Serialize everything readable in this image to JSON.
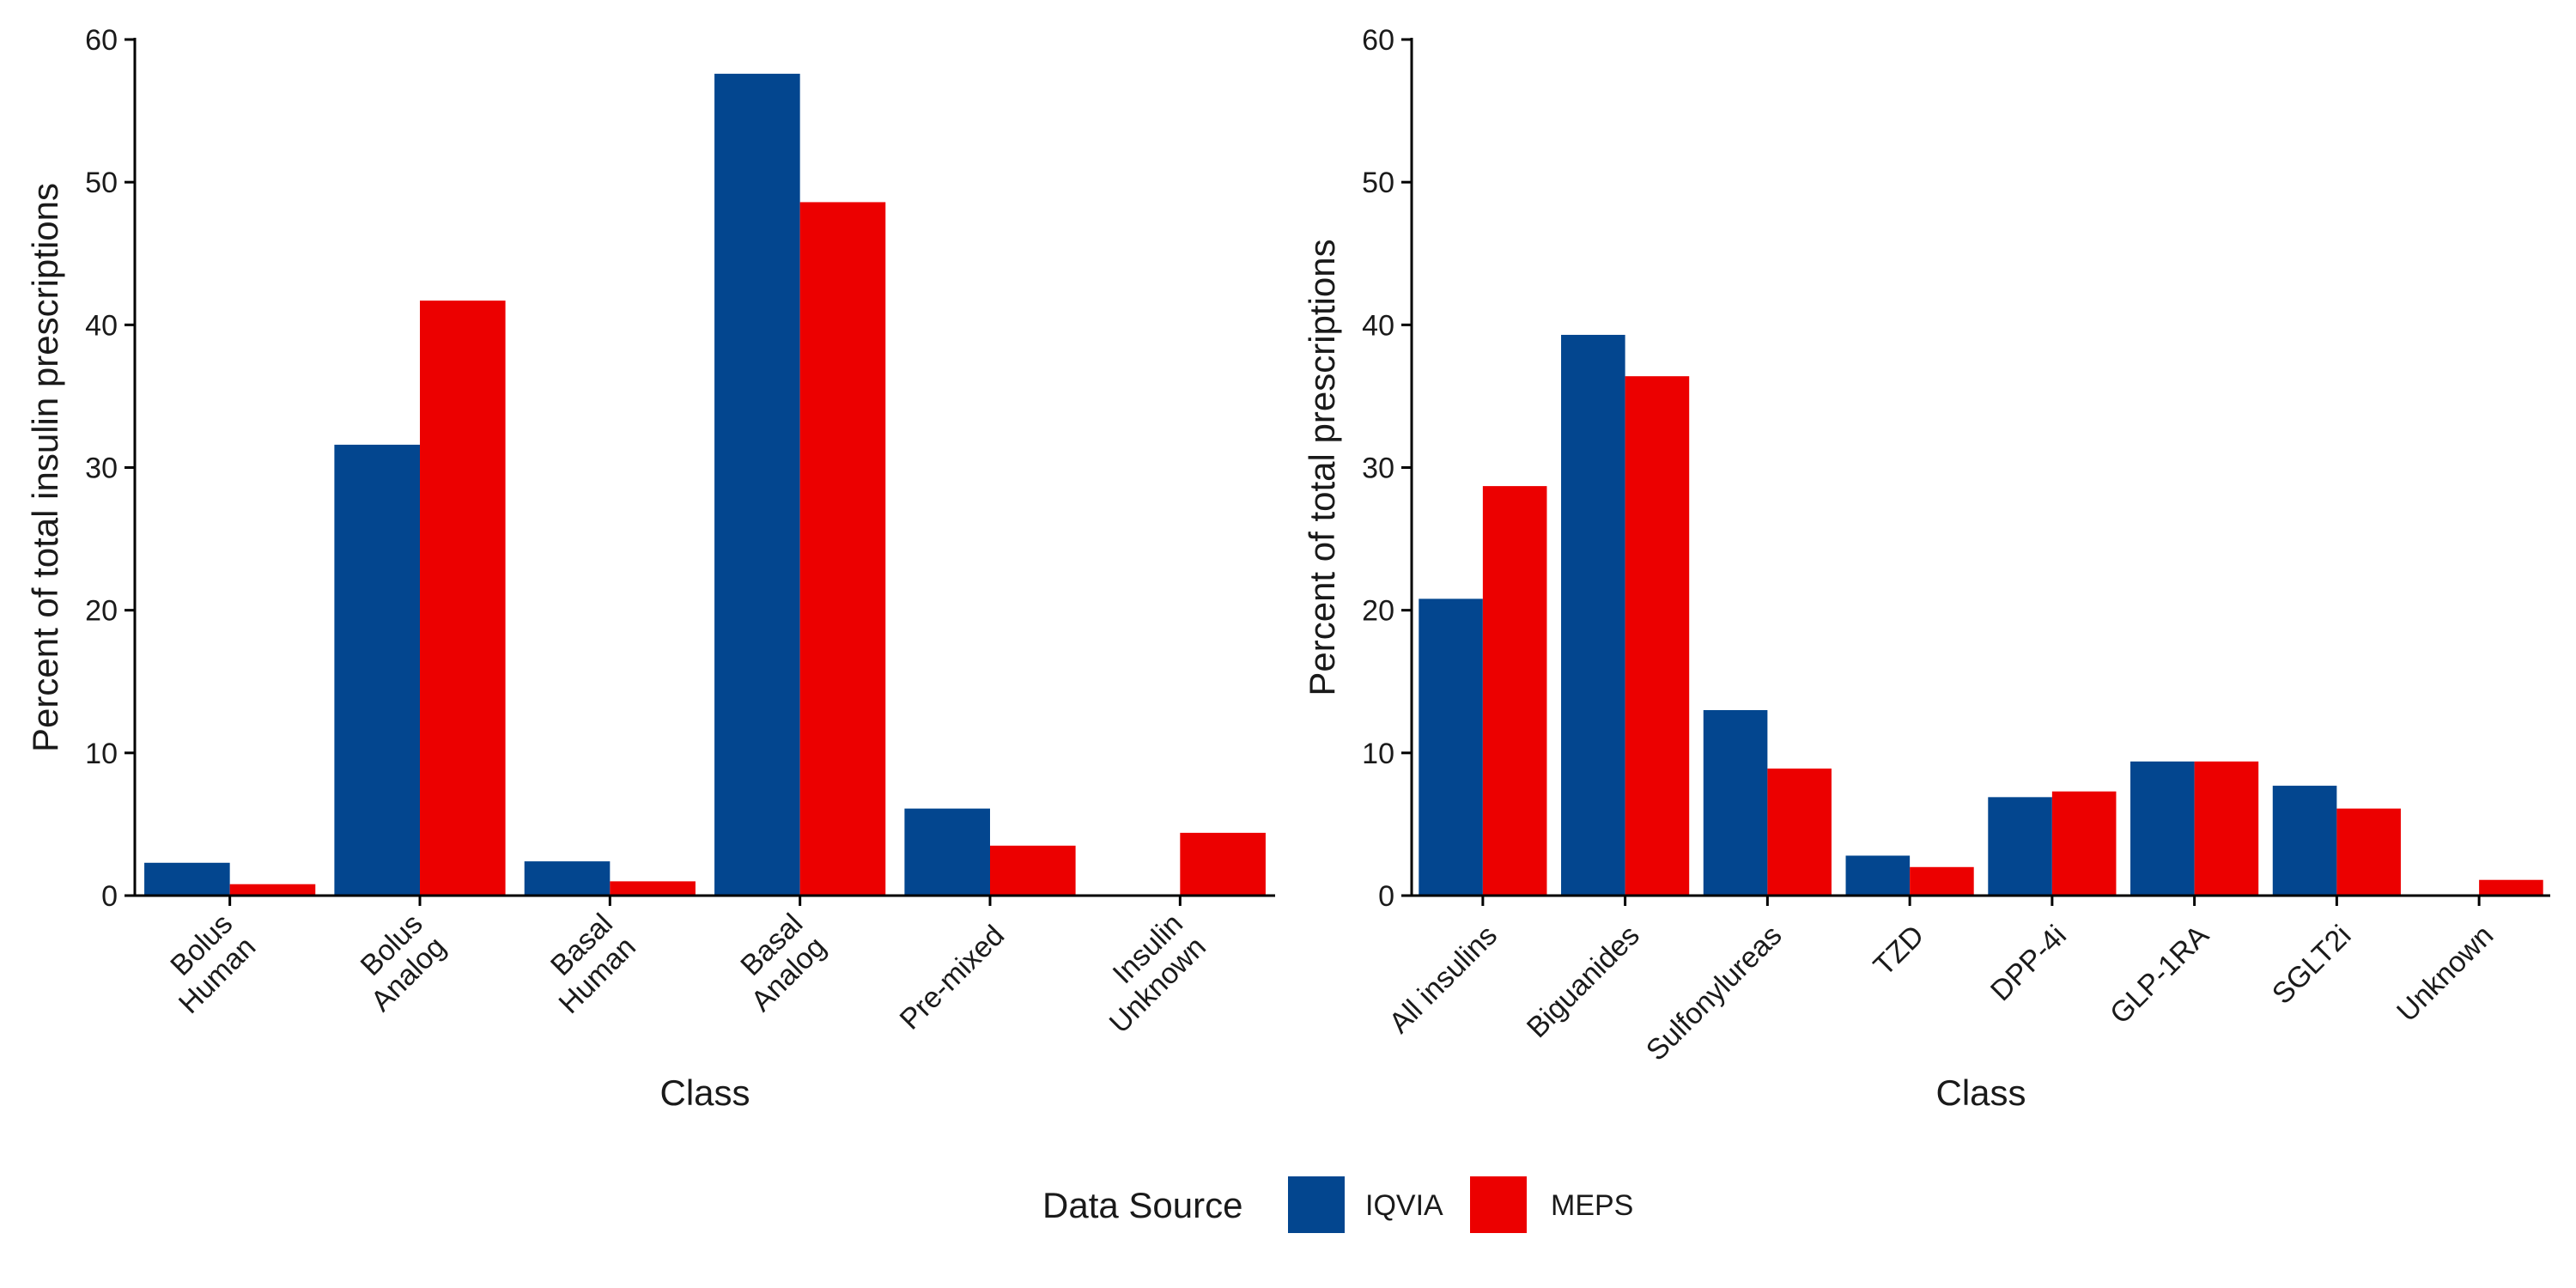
{
  "colors": {
    "IQVIA": "#03468f",
    "MEPS": "#ec0000",
    "axis": "#000000"
  },
  "legend": {
    "title": "Data Source",
    "items": [
      "IQVIA",
      "MEPS"
    ]
  },
  "chart_data": [
    {
      "type": "bar",
      "xlabel": "Class",
      "ylabel": "Percent of total insulin prescriptions",
      "ylim": [
        0,
        60
      ],
      "yticks": [
        0,
        10,
        20,
        30,
        40,
        50,
        60
      ],
      "categories": [
        [
          "Bolus",
          "Human"
        ],
        [
          "Bolus",
          "Analog"
        ],
        [
          "Basal",
          "Human"
        ],
        [
          "Basal",
          "Analog"
        ],
        [
          "Pre-mixed"
        ],
        [
          "Insulin",
          "Unknown"
        ]
      ],
      "series": [
        {
          "name": "IQVIA",
          "values": [
            2.3,
            31.6,
            2.4,
            57.6,
            6.1,
            0
          ]
        },
        {
          "name": "MEPS",
          "values": [
            0.8,
            41.7,
            1.0,
            48.6,
            3.5,
            4.4
          ]
        }
      ]
    },
    {
      "type": "bar",
      "xlabel": "Class",
      "ylabel": "Percent of total prescriptions",
      "ylim": [
        0,
        60
      ],
      "yticks": [
        0,
        10,
        20,
        30,
        40,
        50,
        60
      ],
      "categories": [
        [
          "All insulins"
        ],
        [
          "Biguanides"
        ],
        [
          "Sulfonylureas"
        ],
        [
          "TZD"
        ],
        [
          "DPP-4i"
        ],
        [
          "GLP-1RA"
        ],
        [
          "SGLT2i"
        ],
        [
          "Unknown"
        ]
      ],
      "series": [
        {
          "name": "IQVIA",
          "values": [
            20.8,
            39.3,
            13.0,
            2.8,
            6.9,
            9.4,
            7.7,
            0
          ]
        },
        {
          "name": "MEPS",
          "values": [
            28.7,
            36.4,
            8.9,
            2.0,
            7.3,
            9.4,
            6.1,
            1.1
          ]
        }
      ]
    }
  ]
}
